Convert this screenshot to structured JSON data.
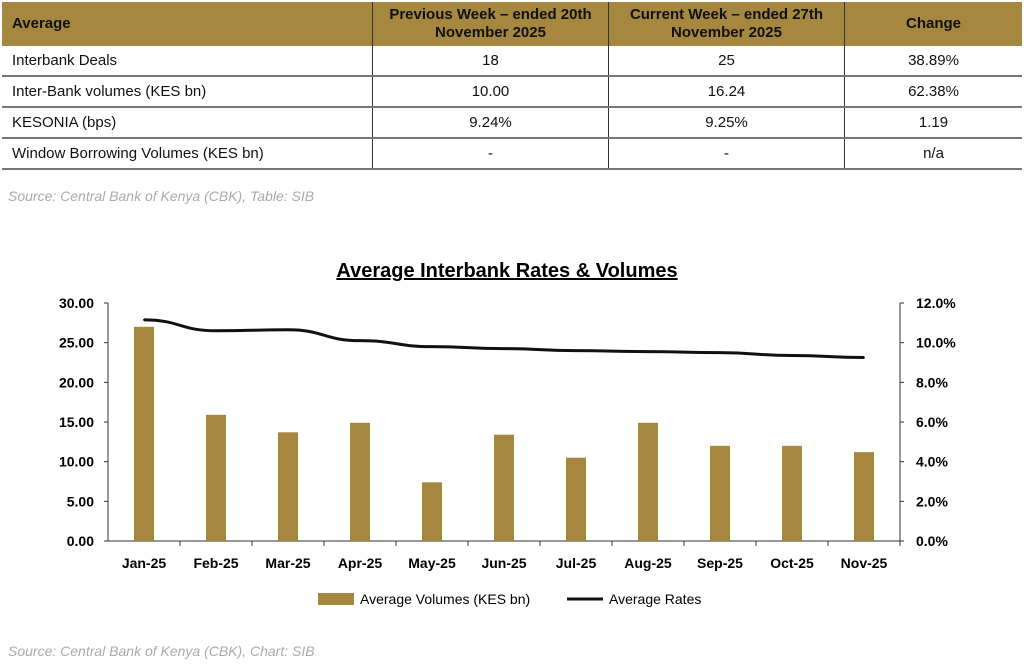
{
  "table": {
    "headers": [
      "Average",
      "Previous Week – ended 20th November 2025",
      "Current Week – ended 27th November 2025",
      "Change"
    ],
    "rows": [
      [
        "Interbank Deals",
        "18",
        "25",
        "38.89%"
      ],
      [
        "Inter-Bank volumes (KES bn)",
        "10.00",
        "16.24",
        "62.38%"
      ],
      [
        "KESONIA (bps)",
        "9.24%",
        "9.25%",
        "1.19"
      ],
      [
        "Window Borrowing Volumes (KES bn)",
        "-",
        "-",
        "n/a"
      ]
    ],
    "source": "Source: Central Bank of Kenya (CBK), Table: SIB"
  },
  "chart_source": "Source: Central Bank of Kenya (CBK), Chart: SIB",
  "chart_data": {
    "type": "bar",
    "title": "Average Interbank Rates & Volumes",
    "categories": [
      "Jan-25",
      "Feb-25",
      "Mar-25",
      "Apr-25",
      "May-25",
      "Jun-25",
      "Jul-25",
      "Aug-25",
      "Sep-25",
      "Oct-25",
      "Nov-25"
    ],
    "series": [
      {
        "name": "Average Volumes (KES bn)",
        "type": "bar",
        "axis": "left",
        "color": "#a5873f",
        "values": [
          27.0,
          15.9,
          13.7,
          14.9,
          7.4,
          13.4,
          10.5,
          14.9,
          12.0,
          12.0,
          11.2
        ]
      },
      {
        "name": "Average Rates",
        "type": "line",
        "axis": "right",
        "color": "#111111",
        "values": [
          11.15,
          10.6,
          10.65,
          10.1,
          9.8,
          9.7,
          9.6,
          9.55,
          9.5,
          9.35,
          9.25
        ]
      }
    ],
    "ylim": [
      0,
      30
    ],
    "yticks": [
      "0.00",
      "5.00",
      "10.00",
      "15.00",
      "20.00",
      "25.00",
      "30.00"
    ],
    "y2lim": [
      0,
      12
    ],
    "y2ticks": [
      "0.0%",
      "2.0%",
      "4.0%",
      "6.0%",
      "8.0%",
      "10.0%",
      "12.0%"
    ],
    "legend": "bottom",
    "grid": false
  }
}
